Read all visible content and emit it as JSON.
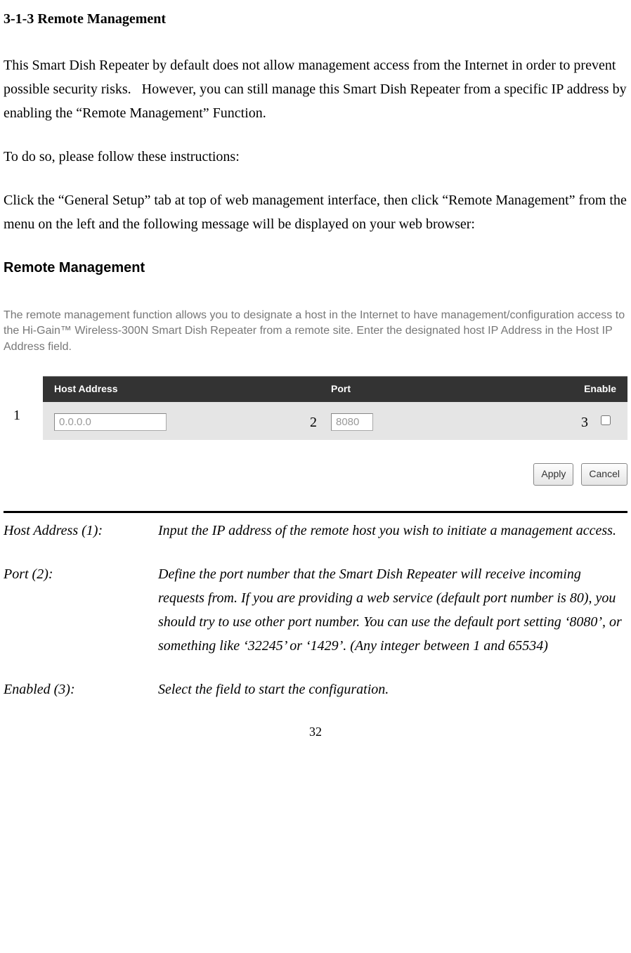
{
  "section_title": "3-1-3 Remote Management",
  "para1": "This Smart Dish Repeater by default does not allow management access from the Internet in order to prevent possible security risks.   However, you can still manage this Smart Dish Repeater from a specific IP address by enabling the “Remote Management” Function.",
  "para2": "To do so, please follow these instructions:",
  "para3": "Click the “General Setup” tab at top of web management interface, then click “Remote Management” from the menu on the left and the following message will be displayed on your web browser:",
  "ui": {
    "title": "Remote Management",
    "desc": "The remote management function allows you to designate a host in the Internet to have management/configuration access to the Hi-Gain™ Wireless-300N Smart Dish Repeater from a remote site. Enter the designated host IP Address in the Host IP Address field.",
    "headers": {
      "host": "Host Address",
      "port": "Port",
      "enable": "Enable"
    },
    "host_value": "0.0.0.0",
    "port_value": "8080",
    "num1": "1",
    "num2": "2",
    "num3": "3",
    "apply": "Apply",
    "cancel": "Cancel"
  },
  "defs": {
    "host_label": "Host Address (1):",
    "host_text": "Input the IP address of the remote host you wish to initiate a management access.",
    "port_label": "Port (2):",
    "port_text": "Define the port number that the Smart Dish Repeater will receive incoming requests from. If you are providing a web service (default port number is 80), you should try to use other port number. You can use the default port setting ‘8080’, or something like ‘32245’ or ‘1429’. (Any integer between 1 and 65534)",
    "enabled_label": "Enabled (3):",
    "enabled_text": "Select the field to start the configuration."
  },
  "page_number": "32"
}
